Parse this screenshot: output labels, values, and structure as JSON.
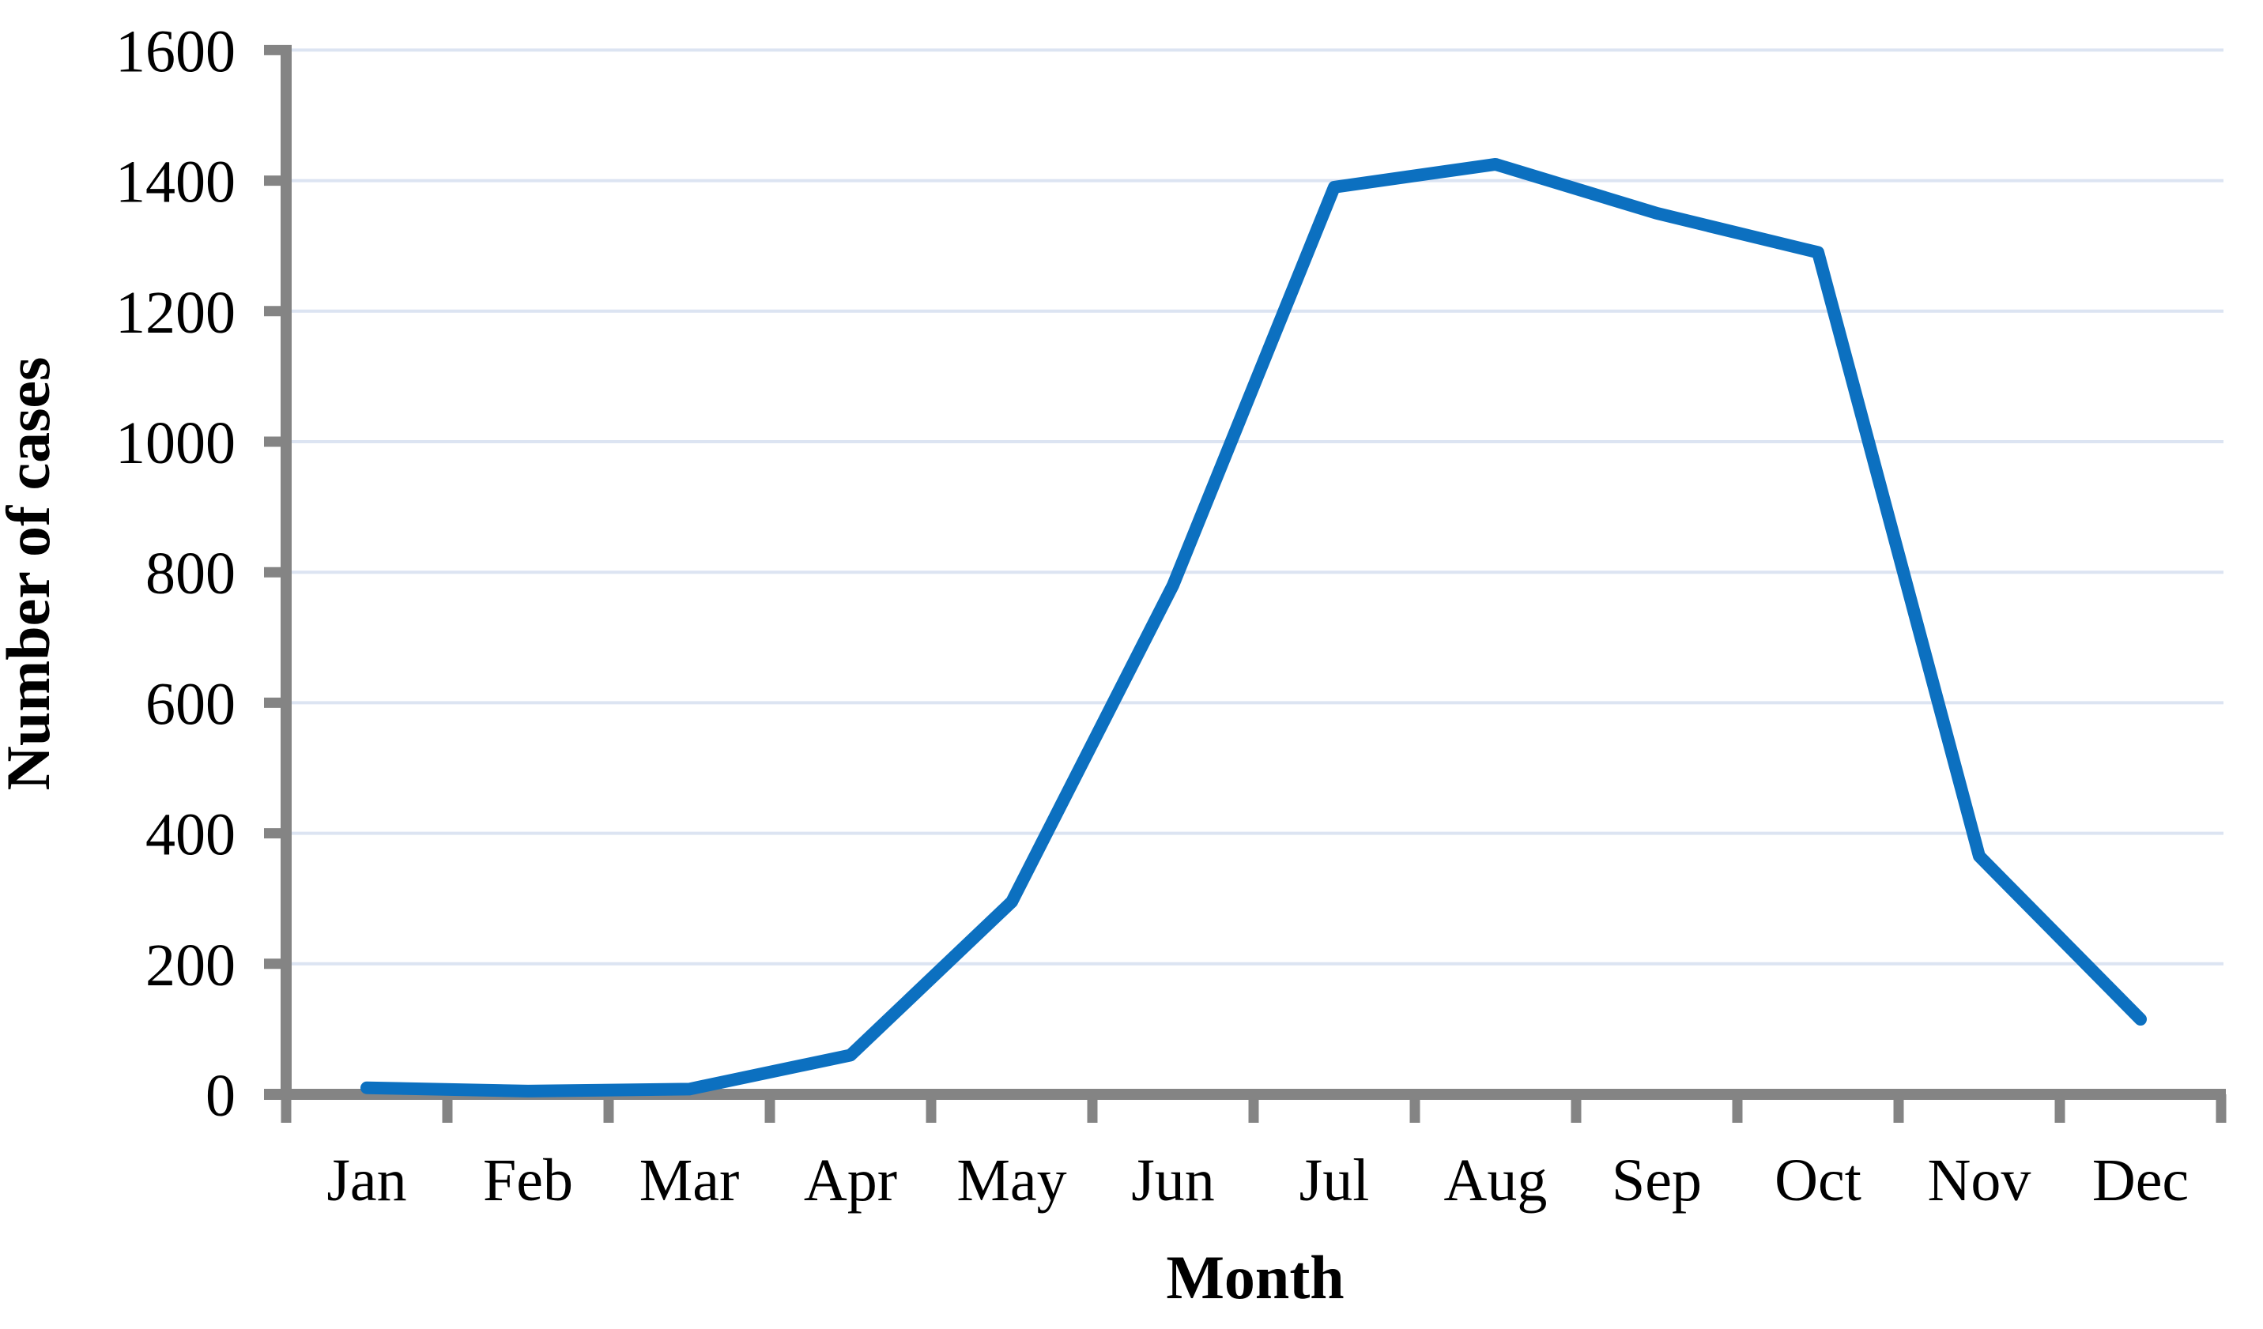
{
  "chart_data": {
    "type": "line",
    "title": "",
    "xlabel": "Month",
    "ylabel": "Number of cases",
    "categories": [
      "Jan",
      "Feb",
      "Mar",
      "Apr",
      "May",
      "Jun",
      "Jul",
      "Aug",
      "Sep",
      "Oct",
      "Nov",
      "Dec"
    ],
    "series": [
      {
        "name": "Number of cases",
        "values": [
          10,
          5,
          8,
          60,
          295,
          780,
          1390,
          1425,
          1350,
          1290,
          365,
          115
        ]
      }
    ],
    "ylim": [
      0,
      1600
    ],
    "ytick_step": 200,
    "yticks": [
      0,
      200,
      400,
      600,
      800,
      1000,
      1200,
      1400,
      1600
    ],
    "grid": "horizontal",
    "legend": "none",
    "colors": {
      "line": "#0C70C0",
      "axis": "#848484",
      "gridline": "#DCE4F2",
      "text": "#000000"
    }
  }
}
